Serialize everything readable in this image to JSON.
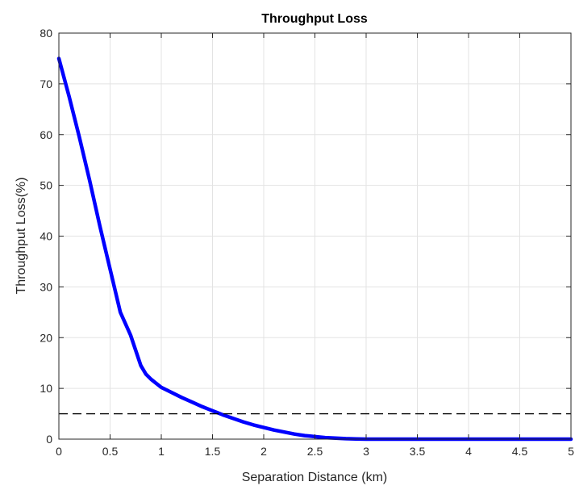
{
  "chart_data": {
    "type": "line",
    "title": "Throughput Loss",
    "xlabel": "Separation Distance (km)",
    "ylabel": "Throughput Loss(%)",
    "xlim": [
      0,
      5
    ],
    "ylim": [
      0,
      80
    ],
    "xticks": [
      0,
      0.5,
      1,
      1.5,
      2,
      2.5,
      3,
      3.5,
      4,
      4.5,
      5
    ],
    "xtick_labels": [
      "0",
      "0.5",
      "1",
      "1.5",
      "2",
      "2.5",
      "3",
      "3.5",
      "4",
      "4.5",
      "5"
    ],
    "yticks": [
      0,
      10,
      20,
      30,
      40,
      50,
      60,
      70,
      80
    ],
    "ytick_labels": [
      "0",
      "10",
      "20",
      "30",
      "40",
      "50",
      "60",
      "70",
      "80"
    ],
    "grid": true,
    "series": [
      {
        "color": "#0000ff",
        "style": "solid",
        "x": [
          0,
          0.1,
          0.2,
          0.3,
          0.4,
          0.5,
          0.6,
          0.7,
          0.75,
          0.8,
          0.85,
          0.9,
          0.95,
          1.0,
          1.1,
          1.2,
          1.3,
          1.4,
          1.5,
          1.6,
          1.7,
          1.8,
          1.9,
          2.0,
          2.1,
          2.2,
          2.3,
          2.4,
          2.5,
          2.6,
          2.7,
          2.8,
          2.9,
          3.0,
          3.5,
          4.0,
          4.5,
          5.0
        ],
        "y": [
          75,
          67.5,
          59.5,
          51,
          42,
          33.5,
          25,
          20.5,
          17.5,
          14.5,
          12.8,
          11.8,
          11.0,
          10.2,
          9.2,
          8.2,
          7.3,
          6.4,
          5.6,
          4.8,
          4.1,
          3.4,
          2.8,
          2.3,
          1.8,
          1.4,
          1.0,
          0.7,
          0.5,
          0.3,
          0.2,
          0.1,
          0.05,
          0,
          0,
          0,
          0,
          0
        ]
      },
      {
        "color": "#000000",
        "style": "dashed",
        "x": [
          0,
          5
        ],
        "y": [
          5,
          5
        ]
      }
    ]
  },
  "colors": {
    "grid": "#e3e3e3",
    "axis": "#262626"
  }
}
